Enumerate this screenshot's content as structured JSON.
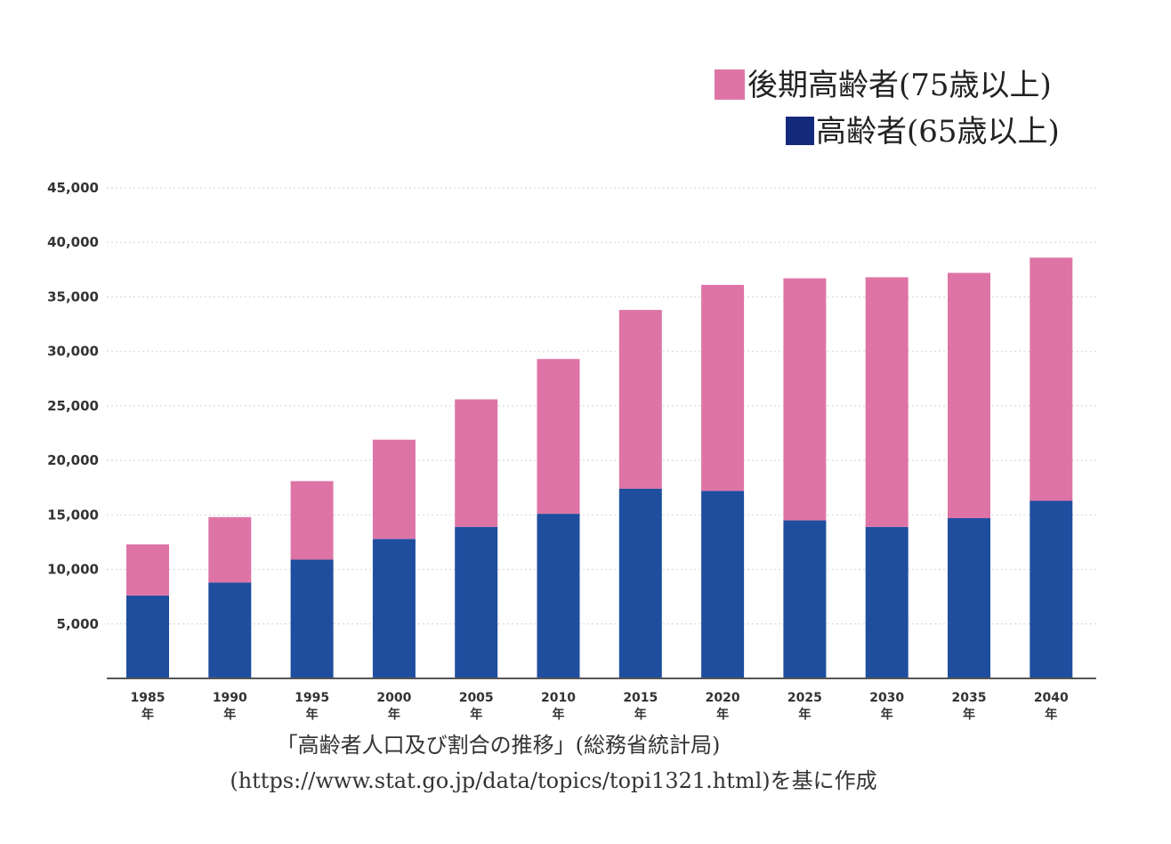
{
  "colors": {
    "old_old": "#de74a6",
    "elderly": "#1f4e9e",
    "legend_elderly_swatch": "#14297a"
  },
  "legend": {
    "items": [
      {
        "label": "後期高齢者(75歳以上)",
        "color_key": "old_old"
      },
      {
        "label": "高齢者(65歳以上)",
        "color_key": "legend_elderly_swatch"
      }
    ]
  },
  "source": {
    "line1": "「高齢者人口及び割合の推移」(総務省統計局)",
    "line2": "(https://www.stat.go.jp/data/topics/topi1321.html)を基に作成"
  },
  "chart_data": {
    "type": "bar",
    "stacked": true,
    "categories": [
      "1985",
      "1990",
      "1995",
      "2000",
      "2005",
      "2010",
      "2015",
      "2020",
      "2025",
      "2030",
      "2035",
      "2040"
    ],
    "category_suffix": "年",
    "series": [
      {
        "name": "高齢者(65歳以上)",
        "color_key": "elderly",
        "values": [
          7600,
          8800,
          10900,
          12800,
          13900,
          15100,
          17400,
          17200,
          14500,
          13900,
          14700,
          16300
        ]
      },
      {
        "name": "後期高齢者(75歳以上)",
        "color_key": "old_old",
        "values": [
          4700,
          6000,
          7200,
          9100,
          11700,
          14200,
          16400,
          18900,
          22200,
          22900,
          22500,
          22300
        ]
      }
    ],
    "ylim": [
      0,
      45000
    ],
    "yticks": [
      5000,
      10000,
      15000,
      20000,
      25000,
      30000,
      35000,
      40000,
      45000
    ],
    "ytick_labels": [
      "5,000",
      "10,000",
      "15,000",
      "20,000",
      "25,000",
      "30,000",
      "35,000",
      "40,000",
      "45,000"
    ],
    "grid": true,
    "legend_position": "top-right"
  }
}
